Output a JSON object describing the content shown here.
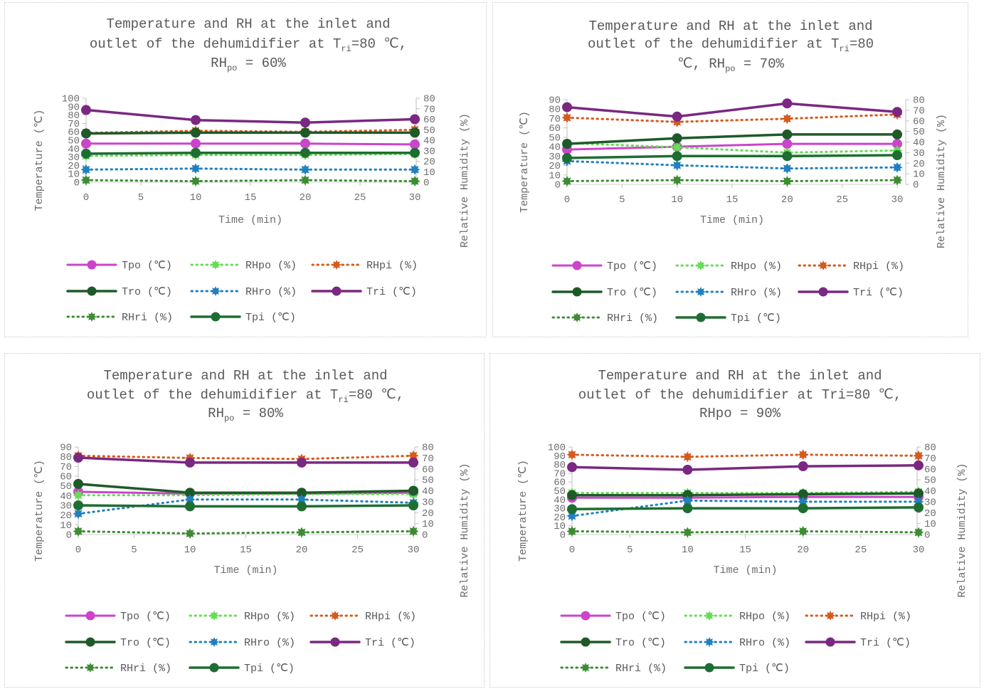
{
  "chart_data": [
    {
      "type": "line",
      "title": [
        "Temperature and RH at the inlet and",
        "outlet of the dehumidifier at T",
        "ri",
        "=80 ℃,",
        "RH",
        "po",
        " = 60%"
      ],
      "xlabel": "Time (min)",
      "ylabel": "Temperature (℃)",
      "y2label": "Relative Humidity (%)",
      "x": [
        0,
        10,
        20,
        30
      ],
      "xlim": [
        0,
        30
      ],
      "xticks": [
        "0",
        "5",
        "10",
        "15",
        "20",
        "25",
        "30"
      ],
      "ylim": [
        0,
        100
      ],
      "yticks": [
        "0",
        "10",
        "20",
        "30",
        "40",
        "50",
        "60",
        "70",
        "80",
        "90",
        "100"
      ],
      "y2lim": [
        0,
        80
      ],
      "y2ticks": [
        "0",
        "10",
        "20",
        "30",
        "40",
        "50",
        "60",
        "70",
        "80"
      ],
      "legend_position": "bottom",
      "series": [
        {
          "name": "Tpo (℃)",
          "axis": "left",
          "values": [
            46,
            46,
            46,
            45
          ]
        },
        {
          "name": "RHpo (%)",
          "axis": "right",
          "values": [
            25,
            26,
            26,
            27
          ]
        },
        {
          "name": "RHpi (%)",
          "axis": "right",
          "values": [
            47,
            49,
            48,
            50
          ]
        },
        {
          "name": "Tro (℃)",
          "axis": "left",
          "values": [
            58,
            59,
            59,
            59
          ]
        },
        {
          "name": "RHro (%)",
          "axis": "right",
          "values": [
            12,
            13,
            12,
            12
          ]
        },
        {
          "name": "Tri (℃)",
          "axis": "left",
          "values": [
            86,
            74,
            71,
            75
          ]
        },
        {
          "name": "RHri (%)",
          "axis": "right",
          "values": [
            2,
            1,
            2,
            1
          ]
        },
        {
          "name": "Tpi (℃)",
          "axis": "left",
          "values": [
            34,
            35,
            35,
            35
          ]
        }
      ]
    },
    {
      "type": "line",
      "title": [
        "Temperature and RH at the inlet and",
        "outlet of the dehumidifier at T",
        "ri",
        "=80",
        "℃, RH",
        "po",
        " = 70%"
      ],
      "xlabel": "Time (min)",
      "ylabel": "Temperature (℃)",
      "y2label": "Relative Humidity (%)",
      "x": [
        0,
        10,
        20,
        30
      ],
      "xlim": [
        0,
        30
      ],
      "xticks": [
        "0",
        "5",
        "10",
        "15",
        "20",
        "25",
        "30"
      ],
      "ylim": [
        0,
        90
      ],
      "yticks": [
        "0",
        "10",
        "20",
        "30",
        "40",
        "50",
        "60",
        "70",
        "80",
        "90"
      ],
      "y2lim": [
        0,
        80
      ],
      "y2ticks": [
        "0",
        "10",
        "20",
        "30",
        "40",
        "50",
        "60",
        "70",
        "80"
      ],
      "legend_position": "bottom",
      "series": [
        {
          "name": "Tpo (℃)",
          "axis": "left",
          "values": [
            37,
            40,
            43,
            43
          ]
        },
        {
          "name": "RHpo (%)",
          "axis": "right",
          "values": [
            39,
            35,
            30,
            32
          ]
        },
        {
          "name": "RHpi (%)",
          "axis": "right",
          "values": [
            63,
            59,
            62,
            66
          ]
        },
        {
          "name": "Tro (℃)",
          "axis": "left",
          "values": [
            43,
            49,
            53,
            53
          ]
        },
        {
          "name": "RHro (%)",
          "axis": "right",
          "values": [
            22,
            18,
            15,
            16
          ]
        },
        {
          "name": "Tri (℃)",
          "axis": "left",
          "values": [
            82,
            72,
            86,
            77
          ]
        },
        {
          "name": "RHri (%)",
          "axis": "right",
          "values": [
            3,
            4,
            3,
            4
          ]
        },
        {
          "name": "Tpi (℃)",
          "axis": "left",
          "values": [
            28,
            30,
            30,
            31
          ]
        }
      ]
    },
    {
      "type": "line",
      "title": [
        "Temperature and RH at the inlet and",
        "outlet of the dehumidifier at T",
        "ri",
        "=80 ℃,",
        "RH",
        "po",
        " = 80%"
      ],
      "xlabel": "Time (min)",
      "ylabel": "Temperature (℃)",
      "y2label": "Relative Humidity (%)",
      "x": [
        0,
        10,
        20,
        30
      ],
      "xlim": [
        0,
        30
      ],
      "xticks": [
        "0",
        "5",
        "10",
        "15",
        "20",
        "25",
        "30"
      ],
      "ylim": [
        0,
        90
      ],
      "yticks": [
        "0",
        "10",
        "20",
        "30",
        "40",
        "50",
        "60",
        "70",
        "80",
        "90"
      ],
      "y2lim": [
        0,
        80
      ],
      "y2ticks": [
        "0",
        "10",
        "20",
        "30",
        "40",
        "50",
        "60",
        "70",
        "80"
      ],
      "legend_position": "bottom",
      "series": [
        {
          "name": "Tpo (℃)",
          "axis": "left",
          "values": [
            44,
            42,
            42,
            43
          ]
        },
        {
          "name": "RHpo (%)",
          "axis": "right",
          "values": [
            36,
            36,
            37,
            37
          ]
        },
        {
          "name": "RHpi (%)",
          "axis": "right",
          "values": [
            72,
            70,
            69,
            72
          ]
        },
        {
          "name": "Tro (℃)",
          "axis": "left",
          "values": [
            52,
            43,
            43,
            45
          ]
        },
        {
          "name": "RHro (%)",
          "axis": "right",
          "values": [
            19,
            32,
            32,
            29
          ]
        },
        {
          "name": "Tri (℃)",
          "axis": "left",
          "values": [
            79,
            74,
            74,
            74
          ]
        },
        {
          "name": "RHri (%)",
          "axis": "right",
          "values": [
            3,
            1,
            2,
            3
          ]
        },
        {
          "name": "Tpi (℃)",
          "axis": "left",
          "values": [
            30,
            29,
            29,
            30
          ]
        }
      ]
    },
    {
      "type": "line",
      "title": [
        "Temperature and RH at the inlet and",
        "outlet of the dehumidifier at Tri=80 ℃,",
        "RHpo = 90%"
      ],
      "xlabel": "Time (min)",
      "ylabel": "Temperature (℃)",
      "y2label": "Relative Humidity (%)",
      "x": [
        0,
        10,
        20,
        30
      ],
      "xlim": [
        0,
        30
      ],
      "xticks": [
        "0",
        "5",
        "10",
        "15",
        "20",
        "25",
        "30"
      ],
      "ylim": [
        0,
        100
      ],
      "yticks": [
        "0",
        "10",
        "20",
        "30",
        "40",
        "50",
        "60",
        "70",
        "80",
        "90",
        "100"
      ],
      "y2lim": [
        0,
        80
      ],
      "y2ticks": [
        "0",
        "10",
        "20",
        "30",
        "40",
        "50",
        "60",
        "70",
        "80"
      ],
      "legend_position": "bottom",
      "series": [
        {
          "name": "Tpo (℃)",
          "axis": "left",
          "values": [
            42,
            42,
            43,
            43
          ]
        },
        {
          "name": "RHpo (%)",
          "axis": "right",
          "values": [
            38,
            38,
            38,
            39
          ]
        },
        {
          "name": "RHpi (%)",
          "axis": "right",
          "values": [
            73,
            71,
            73,
            72
          ]
        },
        {
          "name": "Tro (℃)",
          "axis": "left",
          "values": [
            45,
            45,
            46,
            47
          ]
        },
        {
          "name": "RHro (%)",
          "axis": "right",
          "values": [
            17,
            31,
            30,
            30
          ]
        },
        {
          "name": "Tri (℃)",
          "axis": "left",
          "values": [
            77,
            74,
            78,
            79
          ]
        },
        {
          "name": "RHri (%)",
          "axis": "right",
          "values": [
            3,
            2,
            3,
            2
          ]
        },
        {
          "name": "Tpi (℃)",
          "axis": "left",
          "values": [
            29,
            30,
            30,
            31
          ]
        }
      ]
    }
  ],
  "series_styles": [
    {
      "color": "#cc44cc",
      "dash": false,
      "marker": "circle",
      "width": 3
    },
    {
      "color": "#66dd55",
      "dash": true,
      "marker": "burst",
      "width": 3
    },
    {
      "color": "#d55a1e",
      "dash": true,
      "marker": "burst",
      "width": 3
    },
    {
      "color": "#1e5a28",
      "dash": false,
      "marker": "circle",
      "width": 3.5
    },
    {
      "color": "#2080c0",
      "dash": true,
      "marker": "burst",
      "width": 3
    },
    {
      "color": "#7a2882",
      "dash": false,
      "marker": "circle",
      "width": 3.5
    },
    {
      "color": "#3c8c32",
      "dash": true,
      "marker": "burst",
      "width": 3
    },
    {
      "color": "#1e6e32",
      "dash": false,
      "marker": "circle",
      "width": 3.5
    }
  ]
}
